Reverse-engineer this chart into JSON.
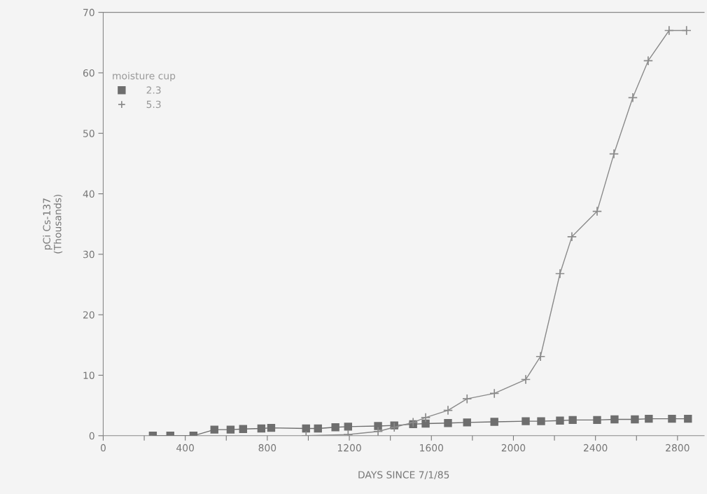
{
  "chart_data": {
    "type": "line",
    "xlabel": "DAYS SINCE 7/1/85",
    "ylabel": "pCi Cs-137\n(Thousands)",
    "legend_title": "moisture cup",
    "legend": "top left",
    "grid": false,
    "xlim": [
      0,
      2930
    ],
    "ylim": [
      0,
      70
    ],
    "xticks": [
      0,
      {
        "value": 200,
        "label": null
      },
      400,
      {
        "value": 600,
        "label": null
      },
      800,
      {
        "value": 1000,
        "label": null
      },
      1200,
      {
        "value": 1400,
        "label": null
      },
      1600,
      {
        "value": 1800,
        "label": null
      },
      2000,
      {
        "value": 2200,
        "label": null
      },
      2400,
      {
        "value": 2600,
        "label": null
      },
      2800
    ],
    "yticks": [
      0,
      10,
      20,
      30,
      40,
      50,
      60,
      70
    ],
    "series": [
      {
        "name": "2.3",
        "color": "#6e6e6e",
        "marker": "square",
        "x": [
          242,
          327,
          440,
          542,
          621,
          682,
          771,
          819,
          989,
          1047,
          1132,
          1194,
          1340,
          1419,
          1511,
          1572,
          1681,
          1774,
          1907,
          2060,
          2135,
          2227,
          2289,
          2408,
          2493,
          2592,
          2660,
          2773,
          2851
        ],
        "values": [
          0,
          0,
          0,
          1.0,
          1.0,
          1.1,
          1.2,
          1.3,
          1.2,
          1.2,
          1.4,
          1.5,
          1.6,
          1.7,
          1.9,
          2.0,
          2.1,
          2.2,
          2.3,
          2.4,
          2.4,
          2.5,
          2.6,
          2.6,
          2.7,
          2.7,
          2.8,
          2.8,
          2.8
        ]
      },
      {
        "name": "5.3",
        "color": "#8a8a8a",
        "marker": "cross",
        "x": [
          989,
          1194,
          1340,
          1419,
          1511,
          1572,
          1681,
          1774,
          1907,
          2060,
          2132,
          2227,
          2285,
          2408,
          2490,
          2582,
          2657,
          2759,
          2844
        ],
        "values": [
          0,
          0.2,
          0.7,
          1.4,
          2.2,
          3.0,
          4.2,
          6.1,
          7.0,
          9.3,
          13.1,
          26.8,
          32.9,
          37.1,
          46.6,
          55.9,
          62.0,
          67.0,
          67.0
        ]
      }
    ]
  }
}
